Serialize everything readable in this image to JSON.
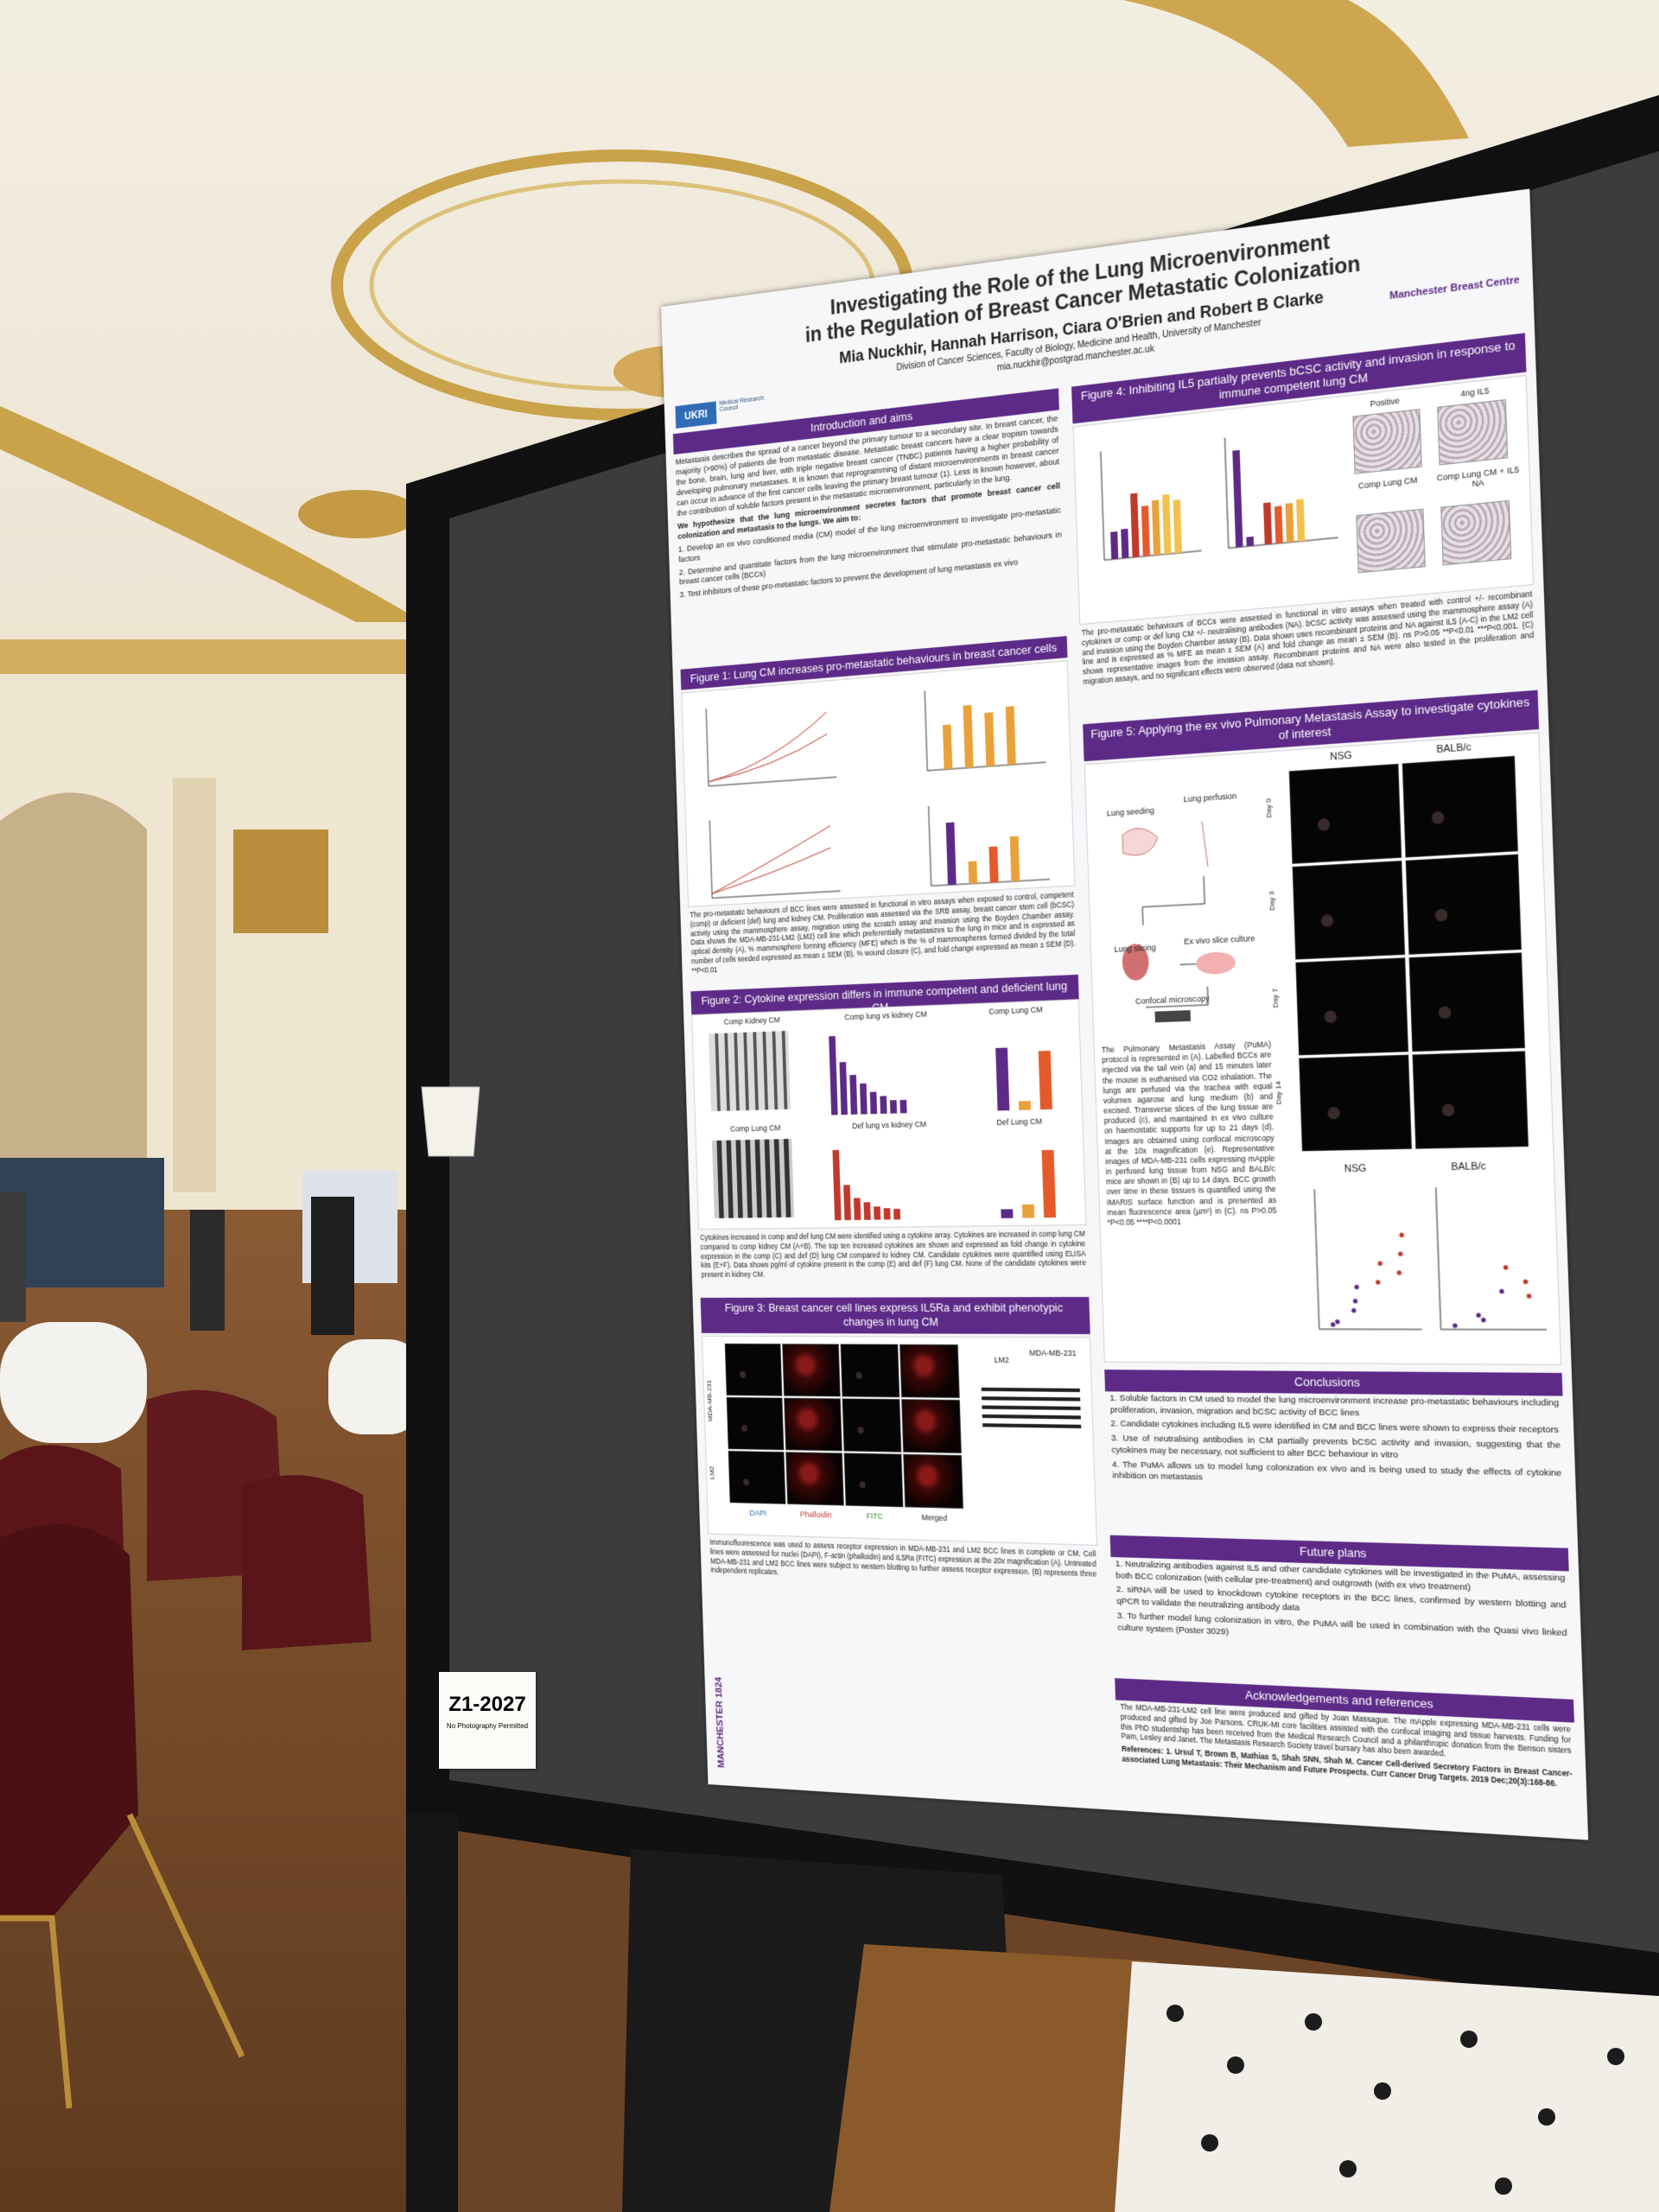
{
  "sign": {
    "code": "Z1-2027",
    "note": "No Photography Permitted"
  },
  "poster": {
    "title": [
      "Investigating the Role of the Lung Microenvironment",
      "in the Regulation of Breast Cancer Metastatic Colonization"
    ],
    "authors": "Mia Nuckhir, Hannah Harrison, Ciara O'Brien and Robert B Clarke",
    "affiliation": "Division of Cancer Sciences, Faculty of Biology, Medicine and Health, University of Manchester",
    "email": "mia.nuckhir@postgrad.manchester.ac.uk",
    "logos": {
      "ukri": "UKRI",
      "mrc": "Medical Research Council",
      "centre": "Manchester Breast Centre",
      "university": "MANCHESTER 1824"
    },
    "intro": {
      "heading": "Introduction and aims",
      "text": "Metastasis describes the spread of a cancer beyond the primary tumour to a secondary site. In breast cancer, the majority (>90%) of patients die from metastatic disease. Metastatic breast cancers have a clear tropism towards the bone, brain, lung and liver, with triple negative breast cancer (TNBC) patients having a higher probability of developing pulmonary metastases. It is known that reprogramming of distant microenvironments in breast cancer can occur in advance of the first cancer cells leaving the primary breast tumour (1). Less is known however, about the contribution of soluble factors present in the metastatic microenvironment, particularly in the lung.",
      "hypothesis": "We hypothesize that the lung microenvironment secretes factors that promote breast cancer cell colonization and metastasis to the lungs. We aim to:",
      "aims": [
        "1. Develop an ex vivo conditioned media (CM) model of the lung microenvironment to investigate pro-metastatic factors",
        "2. Determine and quantitate factors from the lung microenvironment that stimulate pro-metastatic behaviours in breast cancer cells (BCCs)",
        "3. Test inhibitors of these pro-metastatic factors to prevent the development of lung metastasis ex vivo"
      ]
    },
    "figure1": {
      "heading": "Figure 1: Lung CM increases pro-metastatic behaviours in breast cancer cells",
      "caption": "The pro-metastatic behaviours of BCC lines were assessed in functional in vitro assays when exposed to control, competent (comp) or deficient (def) lung and kidney CM. Proliferation was assessed via the SRB assay, breast cancer stem cell (bCSC) activity using the mammosphere assay, migration using the scratch assay and invasion using the Boyden Chamber assay. Data shows the MDA-MB-231-LM2 (LM2) cell line which preferentially metastasizes to the lung in mice and is expressed as optical density (A), % mammosphere forming efficiency (MFE) which is the % of mammospheres formed divided by the total number of cells seeded expressed as mean ± SEM (B), % wound closure (C), and fold change expressed as mean ± SEM (D). **P<0.01"
    },
    "figure2": {
      "heading": "Figure 2: Cytokine expression differs in immune competent and deficient lung CM",
      "panels": [
        "Comp Kidney CM",
        "Comp lung vs kidney CM",
        "Comp Lung CM",
        "Comp Lung CM",
        "Def lung vs kidney CM",
        "Def Lung CM"
      ],
      "caption": "Cytokines increased in comp and def lung CM were identified using a cytokine array. Cytokines are increased in comp lung CM compared to comp kidney CM (A+B). The top ten increased cytokines are shown and expressed as fold change in cytokine expression in the comp (C) and def (D) lung CM compared to kidney CM. Candidate cytokines were quantified using ELISA kits (E+F). Data shows pg/ml of cytokine present in the comp (E) and def (F) lung CM. None of the candidate cytokines were present in kidney CM."
    },
    "figure3": {
      "heading": "Figure 3: Breast cancer cell lines express IL5Ra and exhibit phenotypic changes in lung CM",
      "lanes": [
        "LM2",
        "MDA-MB-231"
      ],
      "channels": [
        "DAPI",
        "Phalloidin",
        "FITC",
        "Merged"
      ],
      "caption": "Immunofluorescence was used to assess receptor expression in MDA-MB-231 and LM2 BCC lines in complete or CM. Cell lines were assessed for nuclei (DAPI), F-actin (phalloidin) and IL5Ra (FITC) expression at the 20x magnification (A). Untreated MDA-MB-231 and LM2 BCC lines were subject to western blotting to further assess receptor expression. (B) represents three independent replicates."
    },
    "figure4": {
      "heading": "Figure 4: Inhibiting IL5 partially prevents bCSC activity and invasion in response to immune competent lung CM",
      "images": [
        "Positive",
        "4ng IL5",
        "Comp Lung CM",
        "Comp Lung CM + IL5 NA"
      ],
      "caption": "The pro-metastatic behaviours of BCCs were assessed in functional in vitro assays when treated with control +/- recombinant cytokines or comp or def lung CM +/- neutralising antibodies (NA). bCSC activity was assessed using the mammosphere assay (A) and invasion using the Boyden Chamber assay (B). Data shown uses recombinant proteins and NA against IL5 (A-C) in the LM2 cell line and is expressed as % MFE as mean ± SEM (A) and fold change as mean ± SEM (B). ns P>0.05 **P<0.01 ***P<0.001. (C) shows representative images from the invasion assay. Recombinant proteins and NA were also tested in the proliferation and migration assays, and no significant effects were observed (data not shown)."
    },
    "figure5": {
      "heading": "Figure 5: Applying the ex vivo Pulmonary Metastasis Assay to investigate cytokines of interest",
      "steps": [
        "Lung seeding",
        "Lung perfusion",
        "Lung slicing",
        "Ex vivo slice culture",
        "Confocal microscopy"
      ],
      "strains": [
        "NSG",
        "BALB/c"
      ],
      "days": [
        "Day 0",
        "Day 3",
        "Day 7",
        "Day 14"
      ],
      "caption": "The Pulmonary Metastasis Assay (PuMA) protocol is represented in (A). Labelled BCCs are injected via the tail vein (a) and 15 minutes later the mouse is euthanised via CO2 inhalation. The lungs are perfused via the trachea with equal volumes agarose and lung medium (b) and excised. Transverse slices of the lung tissue are produced (c), and maintained in ex vivo culture on haemostatic supports for up to 21 days (d). Images are obtained using confocal microscopy at the 10x magnification (e). Representative images of MDA-MB-231 cells expressing mApple in perfused lung tissue from NSG and BALB/c mice are shown in (B) up to 14 days. BCC growth over time in these tissues is quantified using the IMARIS surface function and is presented as mean fluorescence area (µm²) in (C). ns P>0.05 *P<0.05 ****P<0.0001"
    },
    "conclusions": {
      "heading": "Conclusions",
      "items": [
        "1. Soluble factors in CM used to model the lung microenvironment increase pro-metastatic behaviours including proliferation, invasion, migration and bCSC activity of BCC lines",
        "2. Candidate cytokines including IL5 were identified in CM and BCC lines were shown to express their receptors",
        "3. Use of neutralising antibodies in CM partially prevents bCSC activity and invasion, suggesting that the cytokines may be necessary, not sufficient to alter BCC behaviour in vitro",
        "4. The PuMA allows us to model lung colonization ex vivo and is being used to study the effects of cytokine inhibition on metastasis"
      ]
    },
    "future": {
      "heading": "Future plans",
      "items": [
        "1. Neutralizing antibodies against IL5 and other candidate cytokines will be investigated in the PuMA, assessing both BCC colonization (with cellular pre-treatment) and outgrowth (with ex vivo treatment)",
        "2. siRNA will be used to knockdown cytokine receptors in the BCC lines, confirmed by western blotting and qPCR to validate the neutralizing antibody data",
        "3. To further model lung colonization in vitro, the PuMA will be used in combination with the Quasi vivo linked culture system (Poster 3029)"
      ]
    },
    "acknowledgements": {
      "heading": "Acknowledgements and references",
      "text": "The MDA-MB-231-LM2 cell line were produced and gifted by Joan Massague. The mApple expressing MDA-MB-231 cells were produced and gifted by Joe Parsons. CRUK-MI core facilities assisted with the confocal imaging and tissue harvests. Funding for this PhD studentship has been received from the Medical Research Council and a philanthropic donation from the Benson sisters Pam, Lesley and Janet. The Metastasis Research Society travel bursary has also been awarded.",
      "references": "References: 1. Ursul T, Brown B, Mathias S, Shah SNN, Shah M. Cancer Cell-derived Secretory Factors in Breast Cancer-associated Lung Metastasis: Their Mechanism and Future Prospects. Curr Cancer Drug Targets. 2019 Dec;20(3):168-86."
    }
  }
}
